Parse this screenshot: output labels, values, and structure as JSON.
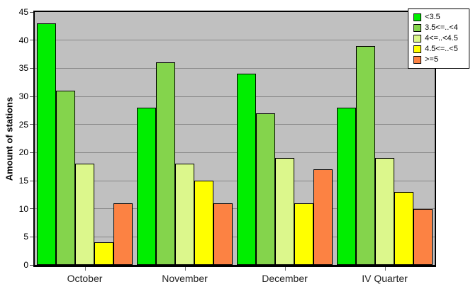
{
  "chart_data": {
    "type": "bar",
    "title": "",
    "xlabel": "",
    "ylabel": "Amount of stations",
    "categories": [
      "October",
      "November",
      "December",
      "IV Quarter"
    ],
    "series": [
      {
        "name": "<3.5",
        "color": "#00ee00",
        "values": [
          43,
          28,
          34,
          28
        ]
      },
      {
        "name": "3.5<=..<4",
        "color": "#84d44c",
        "values": [
          31,
          36,
          27,
          39
        ]
      },
      {
        "name": "4<=..<4.5",
        "color": "#dcf78c",
        "values": [
          18,
          18,
          19,
          19
        ]
      },
      {
        "name": "4.5<=..<5",
        "color": "#ffff00",
        "values": [
          4,
          15,
          11,
          13
        ]
      },
      {
        "name": ">=5",
        "color": "#fc8243",
        "values": [
          11,
          11,
          17,
          10
        ]
      }
    ],
    "ylim": [
      0,
      45
    ],
    "ytick_step": 5,
    "grid": true,
    "legend_position": "top-right",
    "plot_background": "#c0c0c0",
    "grid_color": "#888888",
    "axis_frame_color": "#000000"
  }
}
